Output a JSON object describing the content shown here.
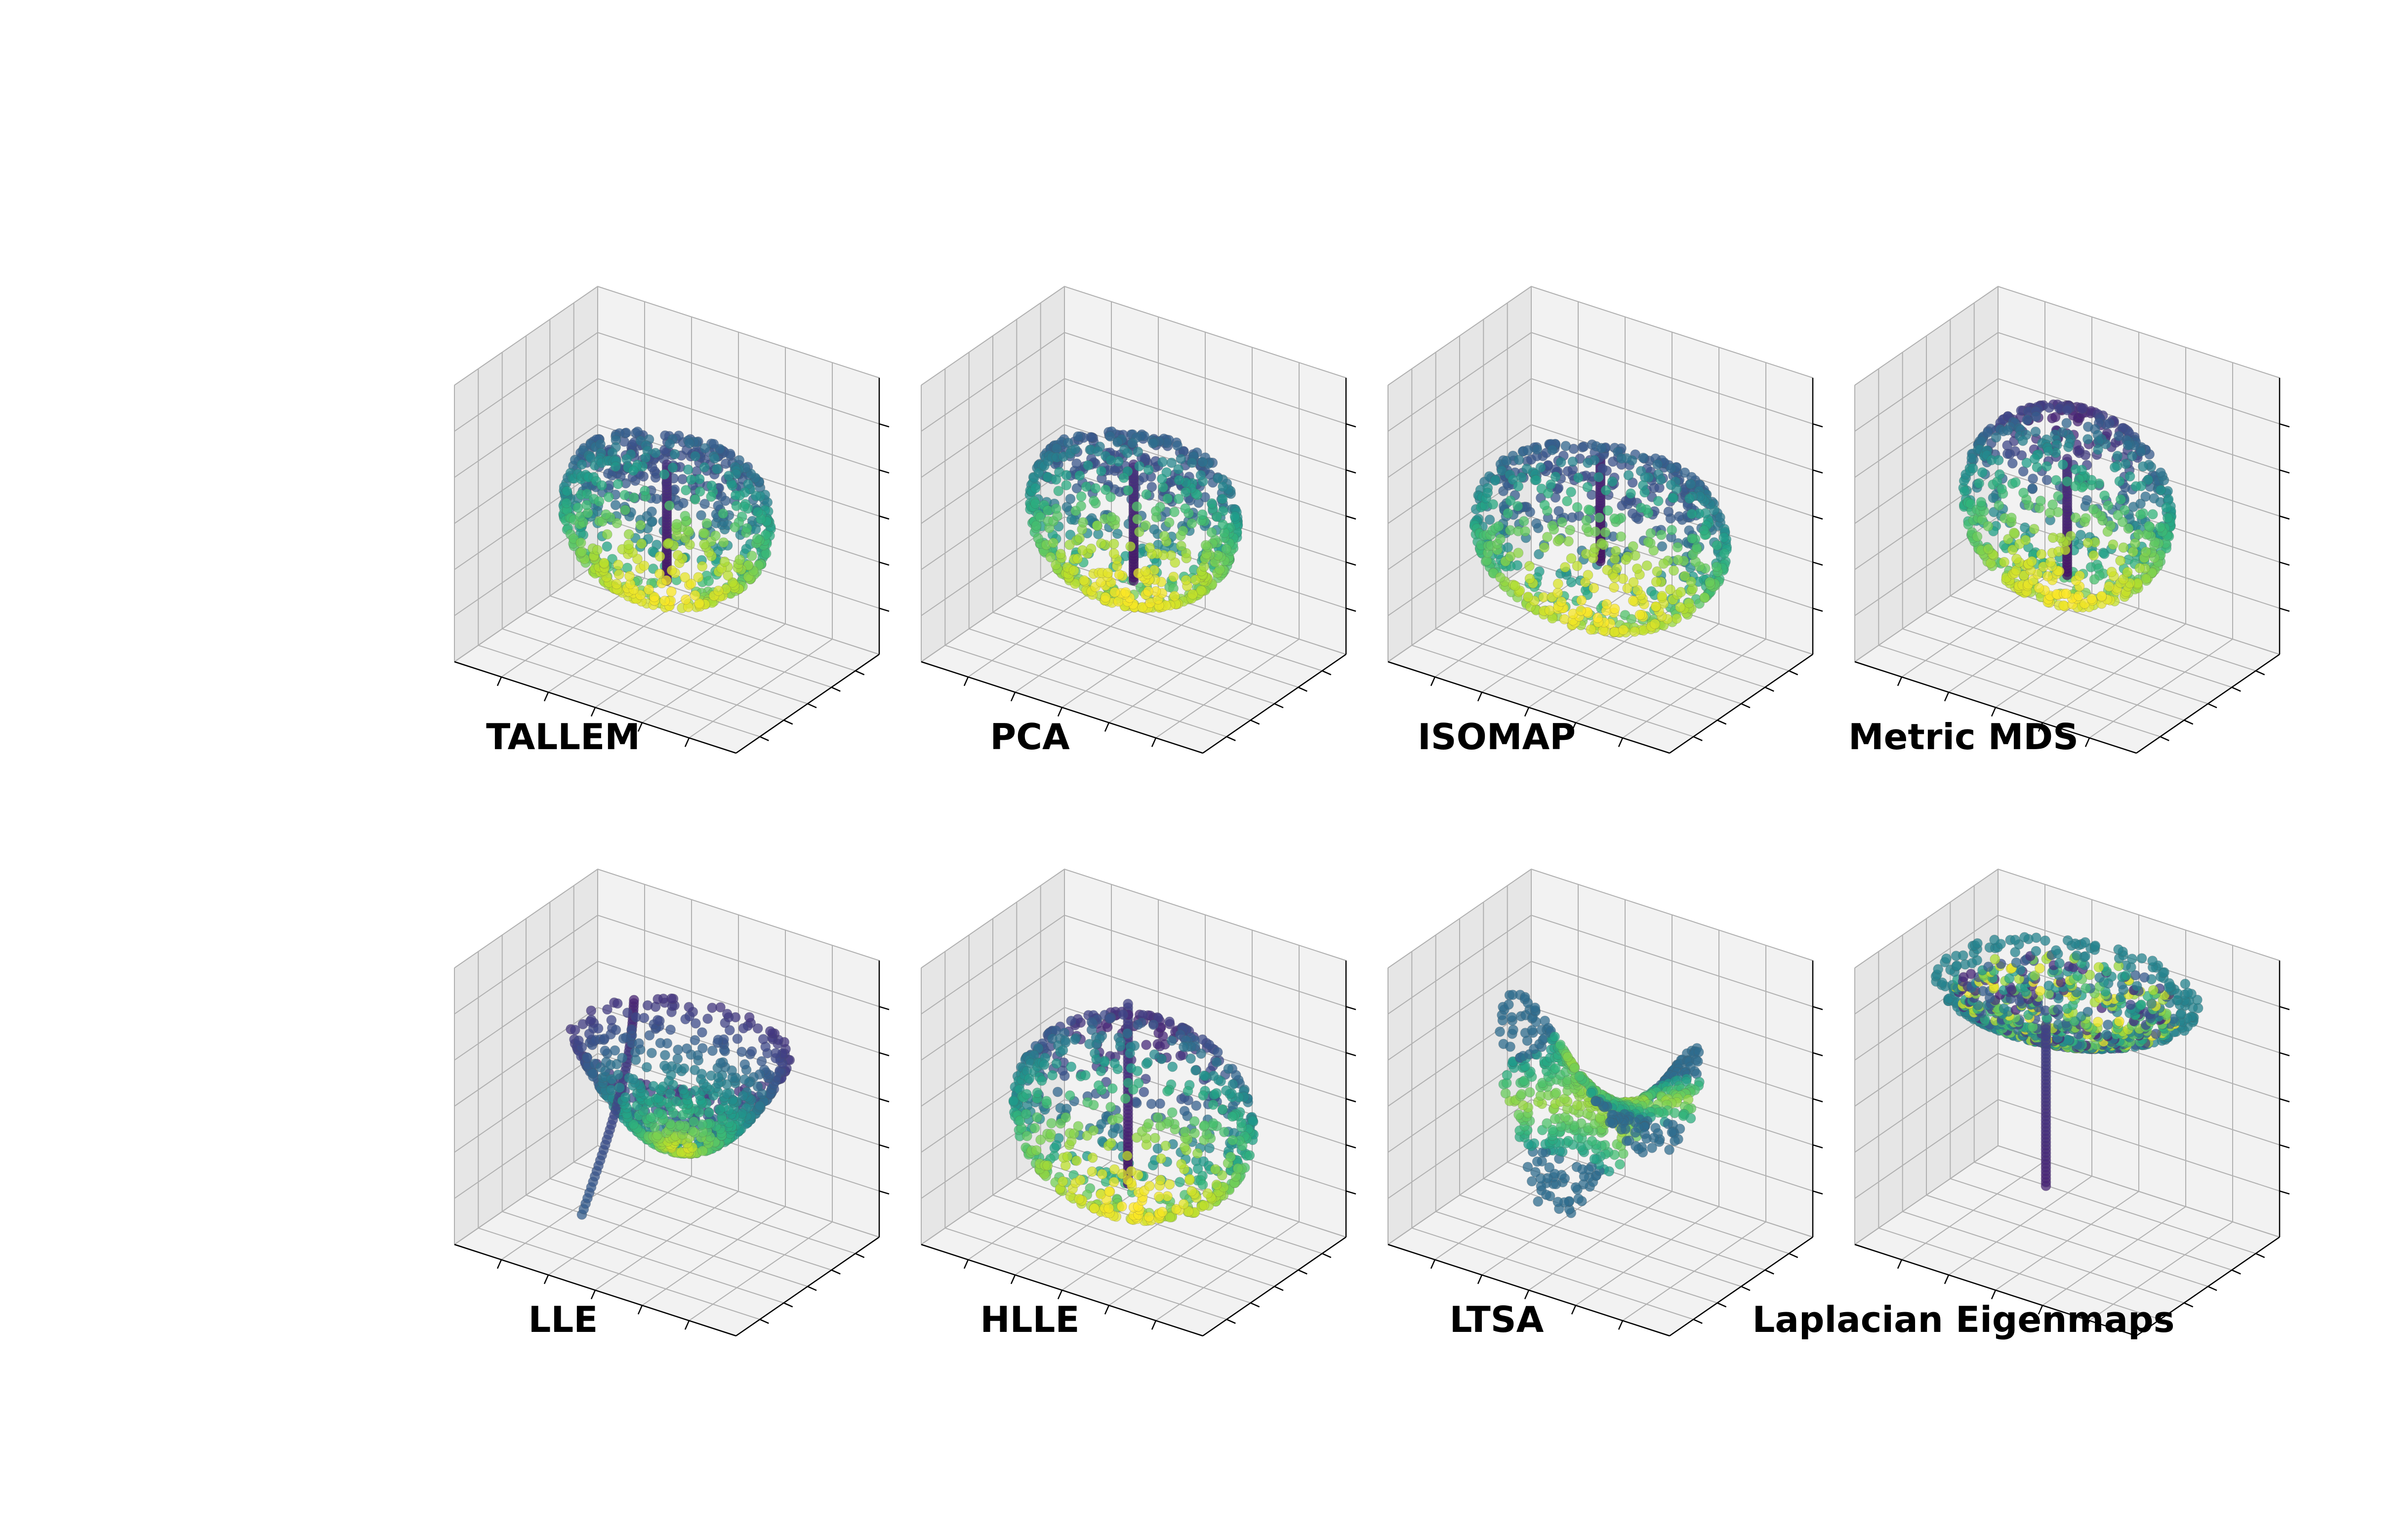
{
  "figure": {
    "colors": {
      "pane_fill_light": "#f2f2f2",
      "pane_fill_dark": "#e6e6e6",
      "grid": "#b0b0b0",
      "tick": "#000000"
    },
    "colormap": "viridis"
  },
  "chart_data": [
    {
      "type": "scatter",
      "projection": "3d",
      "title": "TALLEM",
      "shape": "dome-with-stem",
      "xlabel": "",
      "ylabel": "",
      "zlabel": "",
      "tick_labels_visible": false,
      "grid": true,
      "colormap": "viridis"
    },
    {
      "type": "scatter",
      "projection": "3d",
      "title": "PCA",
      "shape": "dome-with-stem",
      "xlabel": "",
      "ylabel": "",
      "zlabel": "",
      "tick_labels_visible": false,
      "grid": true,
      "colormap": "viridis"
    },
    {
      "type": "scatter",
      "projection": "3d",
      "title": "ISOMAP",
      "shape": "tent-with-stem",
      "xlabel": "",
      "ylabel": "",
      "zlabel": "",
      "tick_labels_visible": false,
      "grid": true,
      "colormap": "viridis"
    },
    {
      "type": "scatter",
      "projection": "3d",
      "title": "Metric MDS",
      "shape": "sphere-with-stem",
      "xlabel": "",
      "ylabel": "",
      "zlabel": "",
      "tick_labels_visible": false,
      "grid": true,
      "colormap": "viridis"
    },
    {
      "type": "scatter",
      "projection": "3d",
      "title": "LLE",
      "shape": "bowl-with-curved-tail",
      "xlabel": "",
      "ylabel": "",
      "zlabel": "",
      "tick_labels_visible": false,
      "grid": true,
      "colormap": "viridis"
    },
    {
      "type": "scatter",
      "projection": "3d",
      "title": "HLLE",
      "shape": "pinched-dome",
      "xlabel": "",
      "ylabel": "",
      "zlabel": "",
      "tick_labels_visible": false,
      "grid": true,
      "colormap": "viridis"
    },
    {
      "type": "scatter",
      "projection": "3d",
      "title": "LTSA",
      "shape": "saddle",
      "xlabel": "",
      "ylabel": "",
      "zlabel": "",
      "tick_labels_visible": false,
      "grid": true,
      "colormap": "viridis"
    },
    {
      "type": "scatter",
      "projection": "3d",
      "title": "Laplacian Eigenmaps",
      "shape": "inverted-umbrella",
      "xlabel": "",
      "ylabel": "",
      "zlabel": "",
      "tick_labels_visible": false,
      "grid": true,
      "colormap": "viridis"
    }
  ]
}
